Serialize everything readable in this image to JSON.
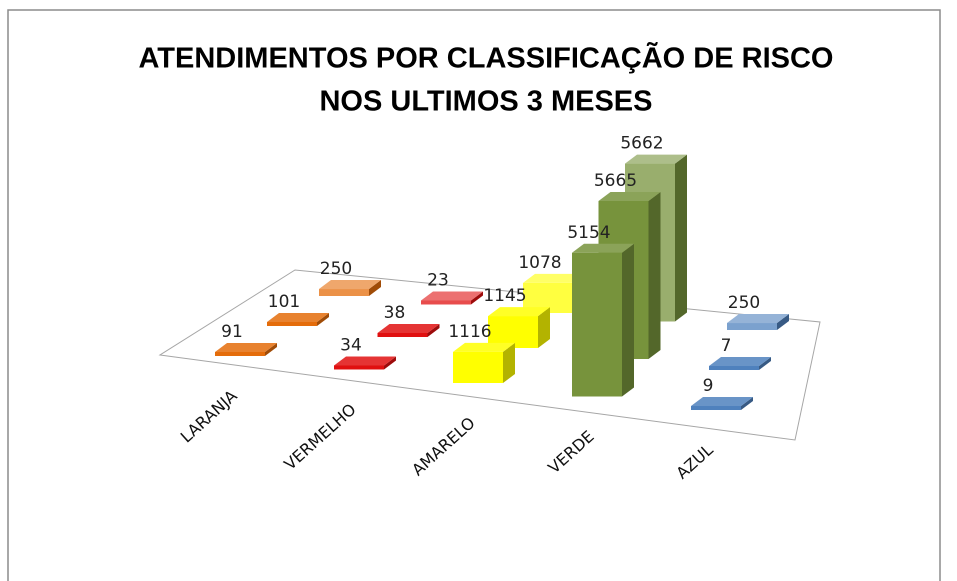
{
  "chart_data": {
    "type": "bar3d",
    "title": [
      "ATENDIMENTOS POR CLASSIFICAÇÃO DE RISCO",
      "NOS ULTIMOS 3 MESES"
    ],
    "categories": [
      "LARANJA",
      "VERMELHO",
      "AMARELO",
      "VERDE",
      "AZUL"
    ],
    "colors": [
      "#e46c0a",
      "#e01010",
      "#ffff00",
      "#77933c",
      "#4f81bd"
    ],
    "series": [
      {
        "values": [
          91,
          34,
          1116,
          5154,
          9
        ]
      },
      {
        "values": [
          101,
          38,
          1145,
          5665,
          7
        ]
      },
      {
        "values": [
          250,
          23,
          1078,
          5662,
          250
        ]
      }
    ]
  }
}
